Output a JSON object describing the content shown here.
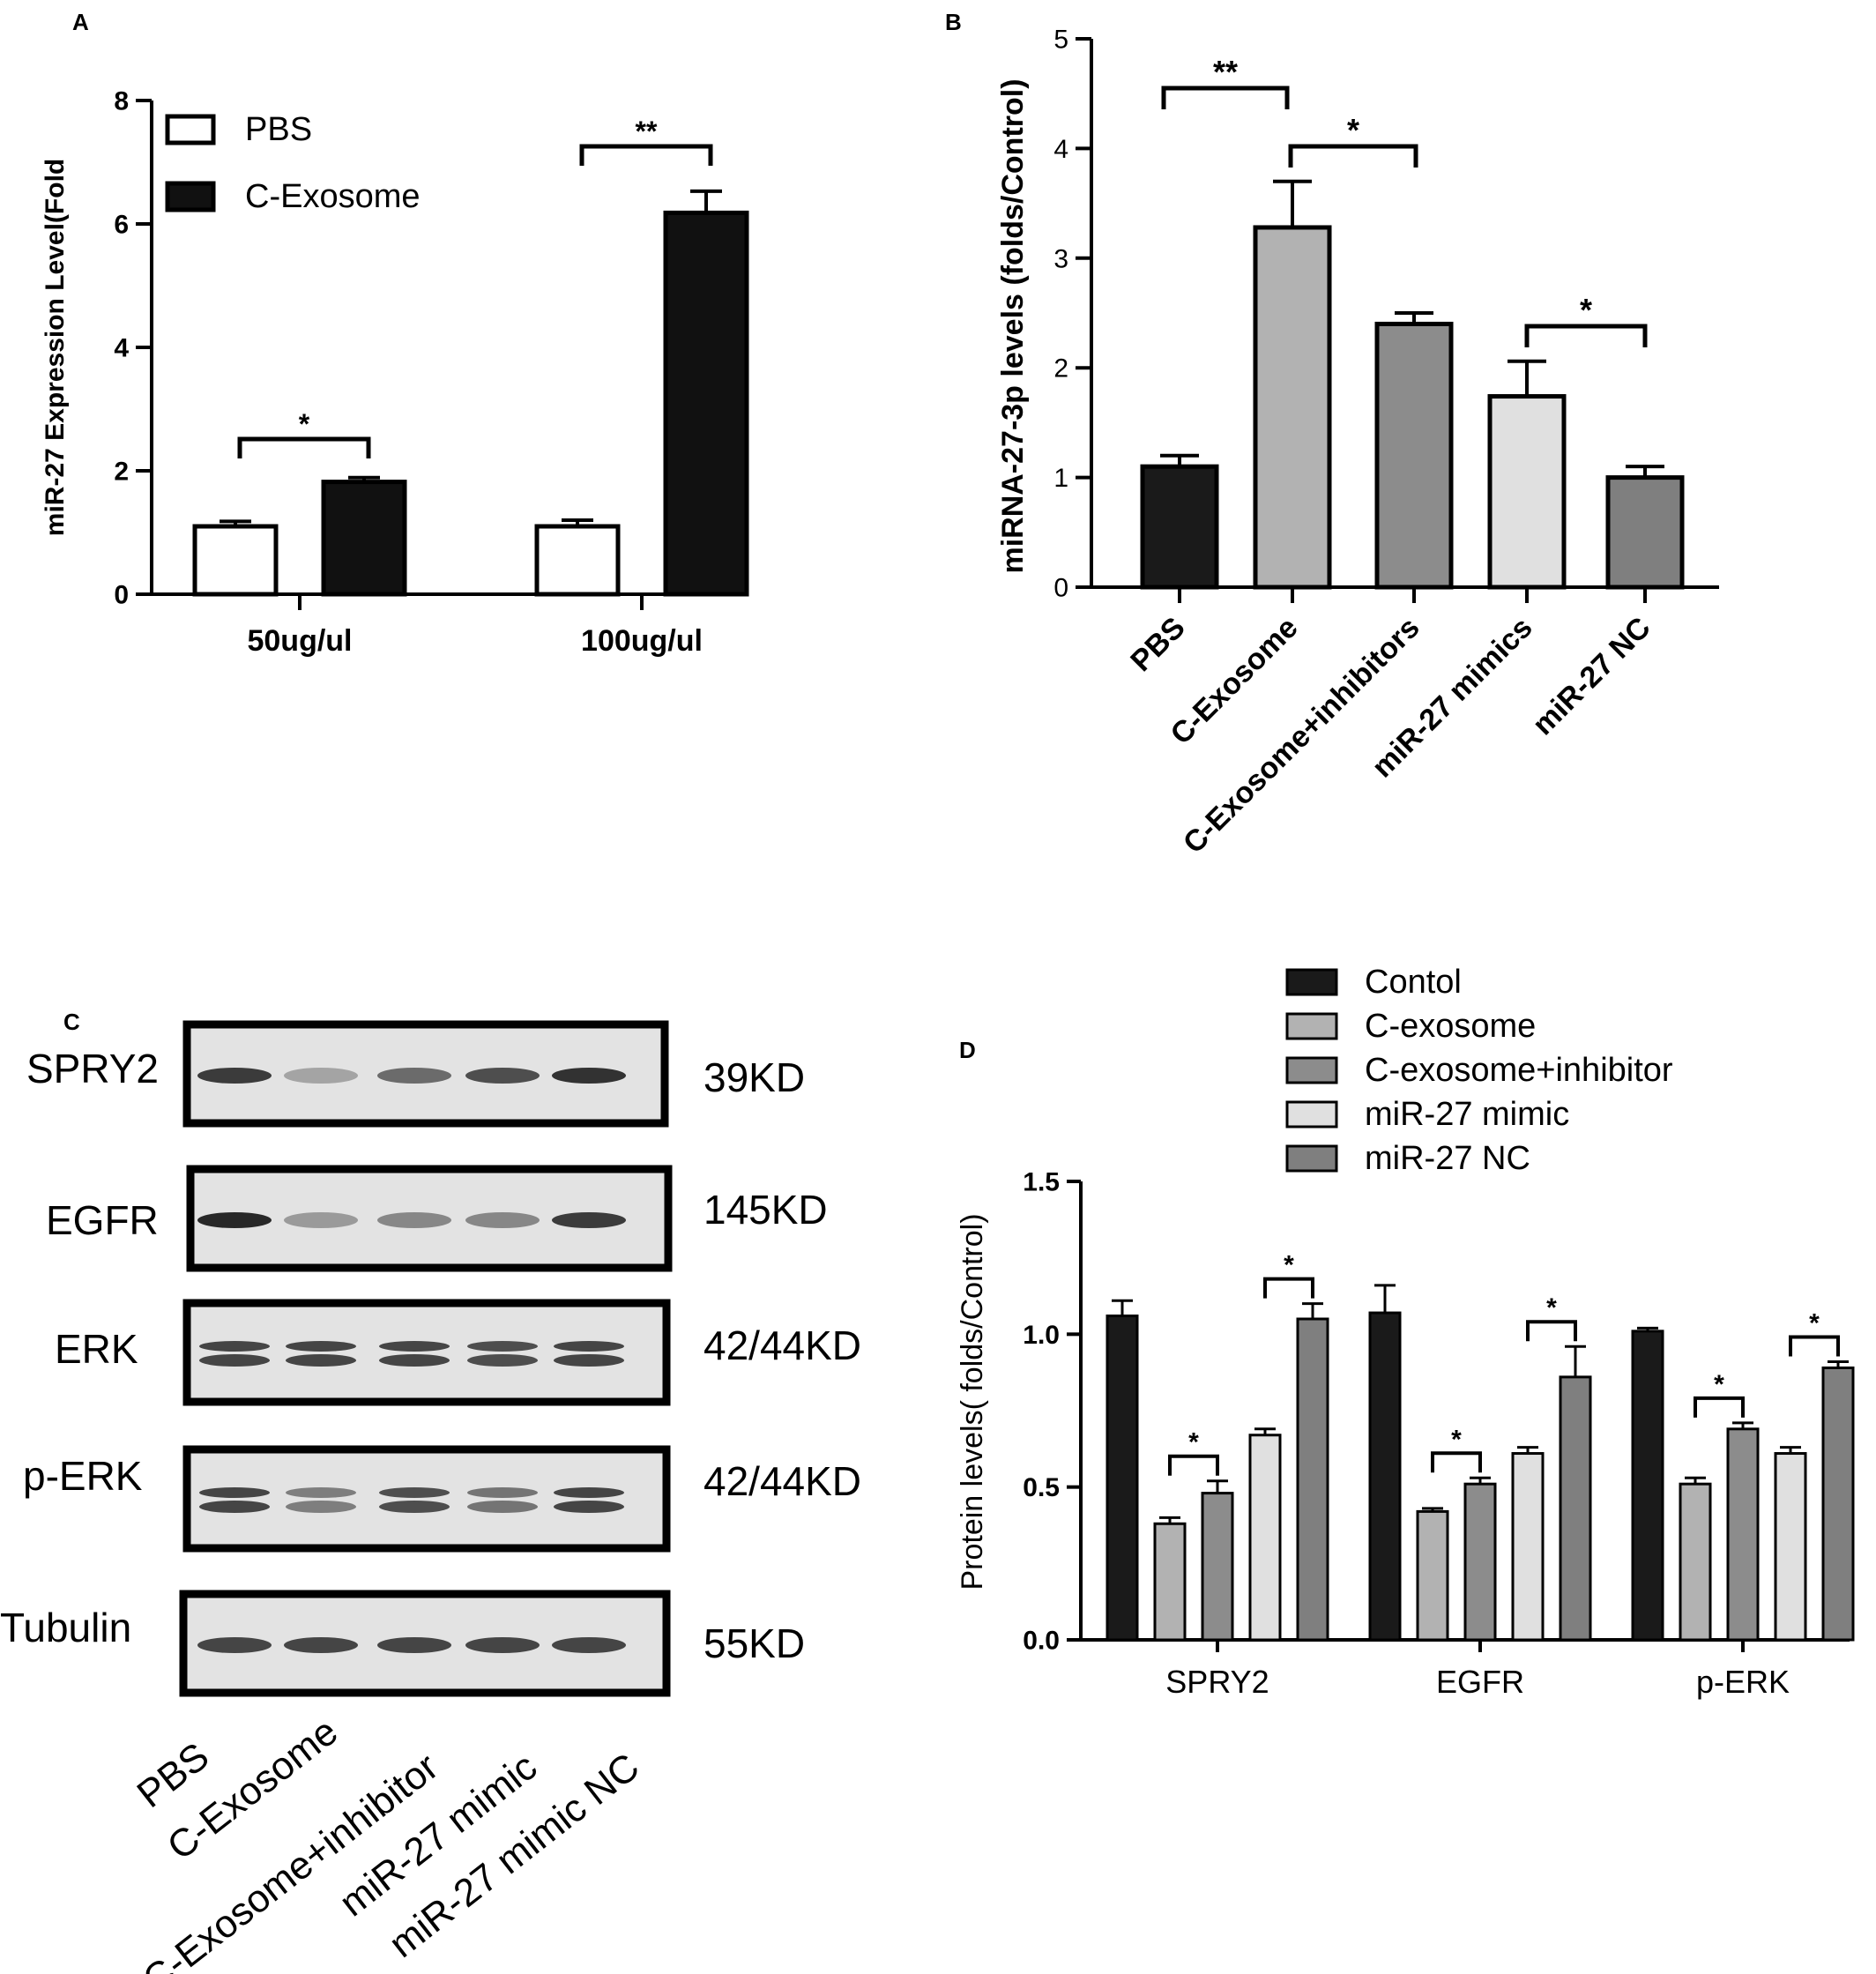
{
  "panels": {
    "A": {
      "letter": "A"
    },
    "B": {
      "letter": "B"
    },
    "C": {
      "letter": "C"
    },
    "D": {
      "letter": "D"
    }
  },
  "chart_data": [
    {
      "panel": "A",
      "type": "bar",
      "ylabel": "miR-27 Expression Level(Fold",
      "ylim": [
        0,
        8
      ],
      "yticks": [
        "0",
        "2",
        "4",
        "6",
        "8"
      ],
      "categories": [
        "50ug/ul",
        "100ug/ul"
      ],
      "series": [
        {
          "name": "PBS",
          "values": [
            1.1,
            1.1
          ],
          "errors": [
            0.08,
            0.1
          ],
          "color": "#ffffff"
        },
        {
          "name": "C-Exosome",
          "values": [
            1.82,
            6.18
          ],
          "errors": [
            0.07,
            0.35
          ],
          "color": "#111111"
        }
      ],
      "legend": "top-left",
      "significance": [
        {
          "label": "*",
          "category": 0
        },
        {
          "label": "**",
          "category": 1
        }
      ]
    },
    {
      "panel": "B",
      "type": "bar",
      "ylabel": "miRNA-27-3p levels (folds/Control)",
      "ylim": [
        0,
        5
      ],
      "yticks": [
        "0",
        "1",
        "2",
        "3",
        "4",
        "5"
      ],
      "categories": [
        "PBS",
        "C-Exosome",
        "C-Exosome+inhibitors",
        "miR-27 mimics",
        "miR-27 NC"
      ],
      "values": [
        1.1,
        3.28,
        2.4,
        1.74,
        1.0
      ],
      "errors": [
        0.1,
        0.42,
        0.1,
        0.32,
        0.1
      ],
      "colors": [
        "#1a1a1a",
        "#b2b2b2",
        "#8c8c8c",
        "#e0e0e0",
        "#7f7f7f"
      ],
      "significance": [
        {
          "label": "**",
          "from": 0,
          "to": 1
        },
        {
          "label": "*",
          "from": 1,
          "to": 2
        },
        {
          "label": "*",
          "from": 3,
          "to": 4
        }
      ]
    },
    {
      "panel": "D",
      "type": "bar",
      "ylabel": "Protein levels( folds/Control)",
      "ylim": [
        0,
        1.5
      ],
      "yticks": [
        "0.0",
        "0.5",
        "1.0",
        "1.5"
      ],
      "categories": [
        "SPRY2",
        "EGFR",
        "p-ERK"
      ],
      "series": [
        {
          "name": "Contol",
          "values": [
            1.06,
            1.07,
            1.01
          ],
          "errors": [
            0.05,
            0.09,
            0.01
          ],
          "color": "#1a1a1a"
        },
        {
          "name": "C-exosome",
          "values": [
            0.38,
            0.42,
            0.51
          ],
          "errors": [
            0.02,
            0.01,
            0.02
          ],
          "color": "#b2b2b2"
        },
        {
          "name": "C-exosome+inhibitor",
          "values": [
            0.48,
            0.51,
            0.69
          ],
          "errors": [
            0.04,
            0.02,
            0.02
          ],
          "color": "#8c8c8c"
        },
        {
          "name": "miR-27 mimic",
          "values": [
            0.67,
            0.61,
            0.61
          ],
          "errors": [
            0.02,
            0.02,
            0.02
          ],
          "color": "#e0e0e0"
        },
        {
          "name": "miR-27 NC",
          "values": [
            1.05,
            0.86,
            0.89
          ],
          "errors": [
            0.05,
            0.1,
            0.02
          ],
          "color": "#7f7f7f"
        }
      ],
      "legend": "top",
      "significance": [
        {
          "label": "*",
          "category": 0,
          "from": 1,
          "to": 2
        },
        {
          "label": "*",
          "category": 0,
          "from": 3,
          "to": 4
        },
        {
          "label": "*",
          "category": 1,
          "from": 1,
          "to": 2
        },
        {
          "label": "*",
          "category": 1,
          "from": 3,
          "to": 4
        },
        {
          "label": "*",
          "category": 2,
          "from": 1,
          "to": 2
        },
        {
          "label": "*",
          "category": 2,
          "from": 3,
          "to": 4
        }
      ]
    }
  ],
  "western_blot": {
    "rows": [
      {
        "protein": "SPRY2",
        "size": "39KD",
        "intensities": [
          0.85,
          0.3,
          0.6,
          0.75,
          0.9
        ],
        "doublet": false
      },
      {
        "protein": "EGFR",
        "size": "145KD",
        "intensities": [
          0.95,
          0.35,
          0.45,
          0.45,
          0.85
        ],
        "doublet": false
      },
      {
        "protein": "ERK",
        "size": "42/44KD",
        "intensities": [
          0.8,
          0.8,
          0.8,
          0.75,
          0.8
        ],
        "doublet": true
      },
      {
        "protein": "p-ERK",
        "size": "42/44KD",
        "intensities": [
          0.8,
          0.5,
          0.75,
          0.55,
          0.8
        ],
        "doublet": true
      },
      {
        "protein": "Tubulin",
        "size": "55KD",
        "intensities": [
          0.8,
          0.8,
          0.8,
          0.8,
          0.8
        ],
        "doublet": false
      }
    ],
    "lanes": [
      "PBS",
      "C-Exosome",
      "C-Exosome+inhibitor",
      "miR-27 mimic",
      "miR-27 mimic NC"
    ]
  }
}
